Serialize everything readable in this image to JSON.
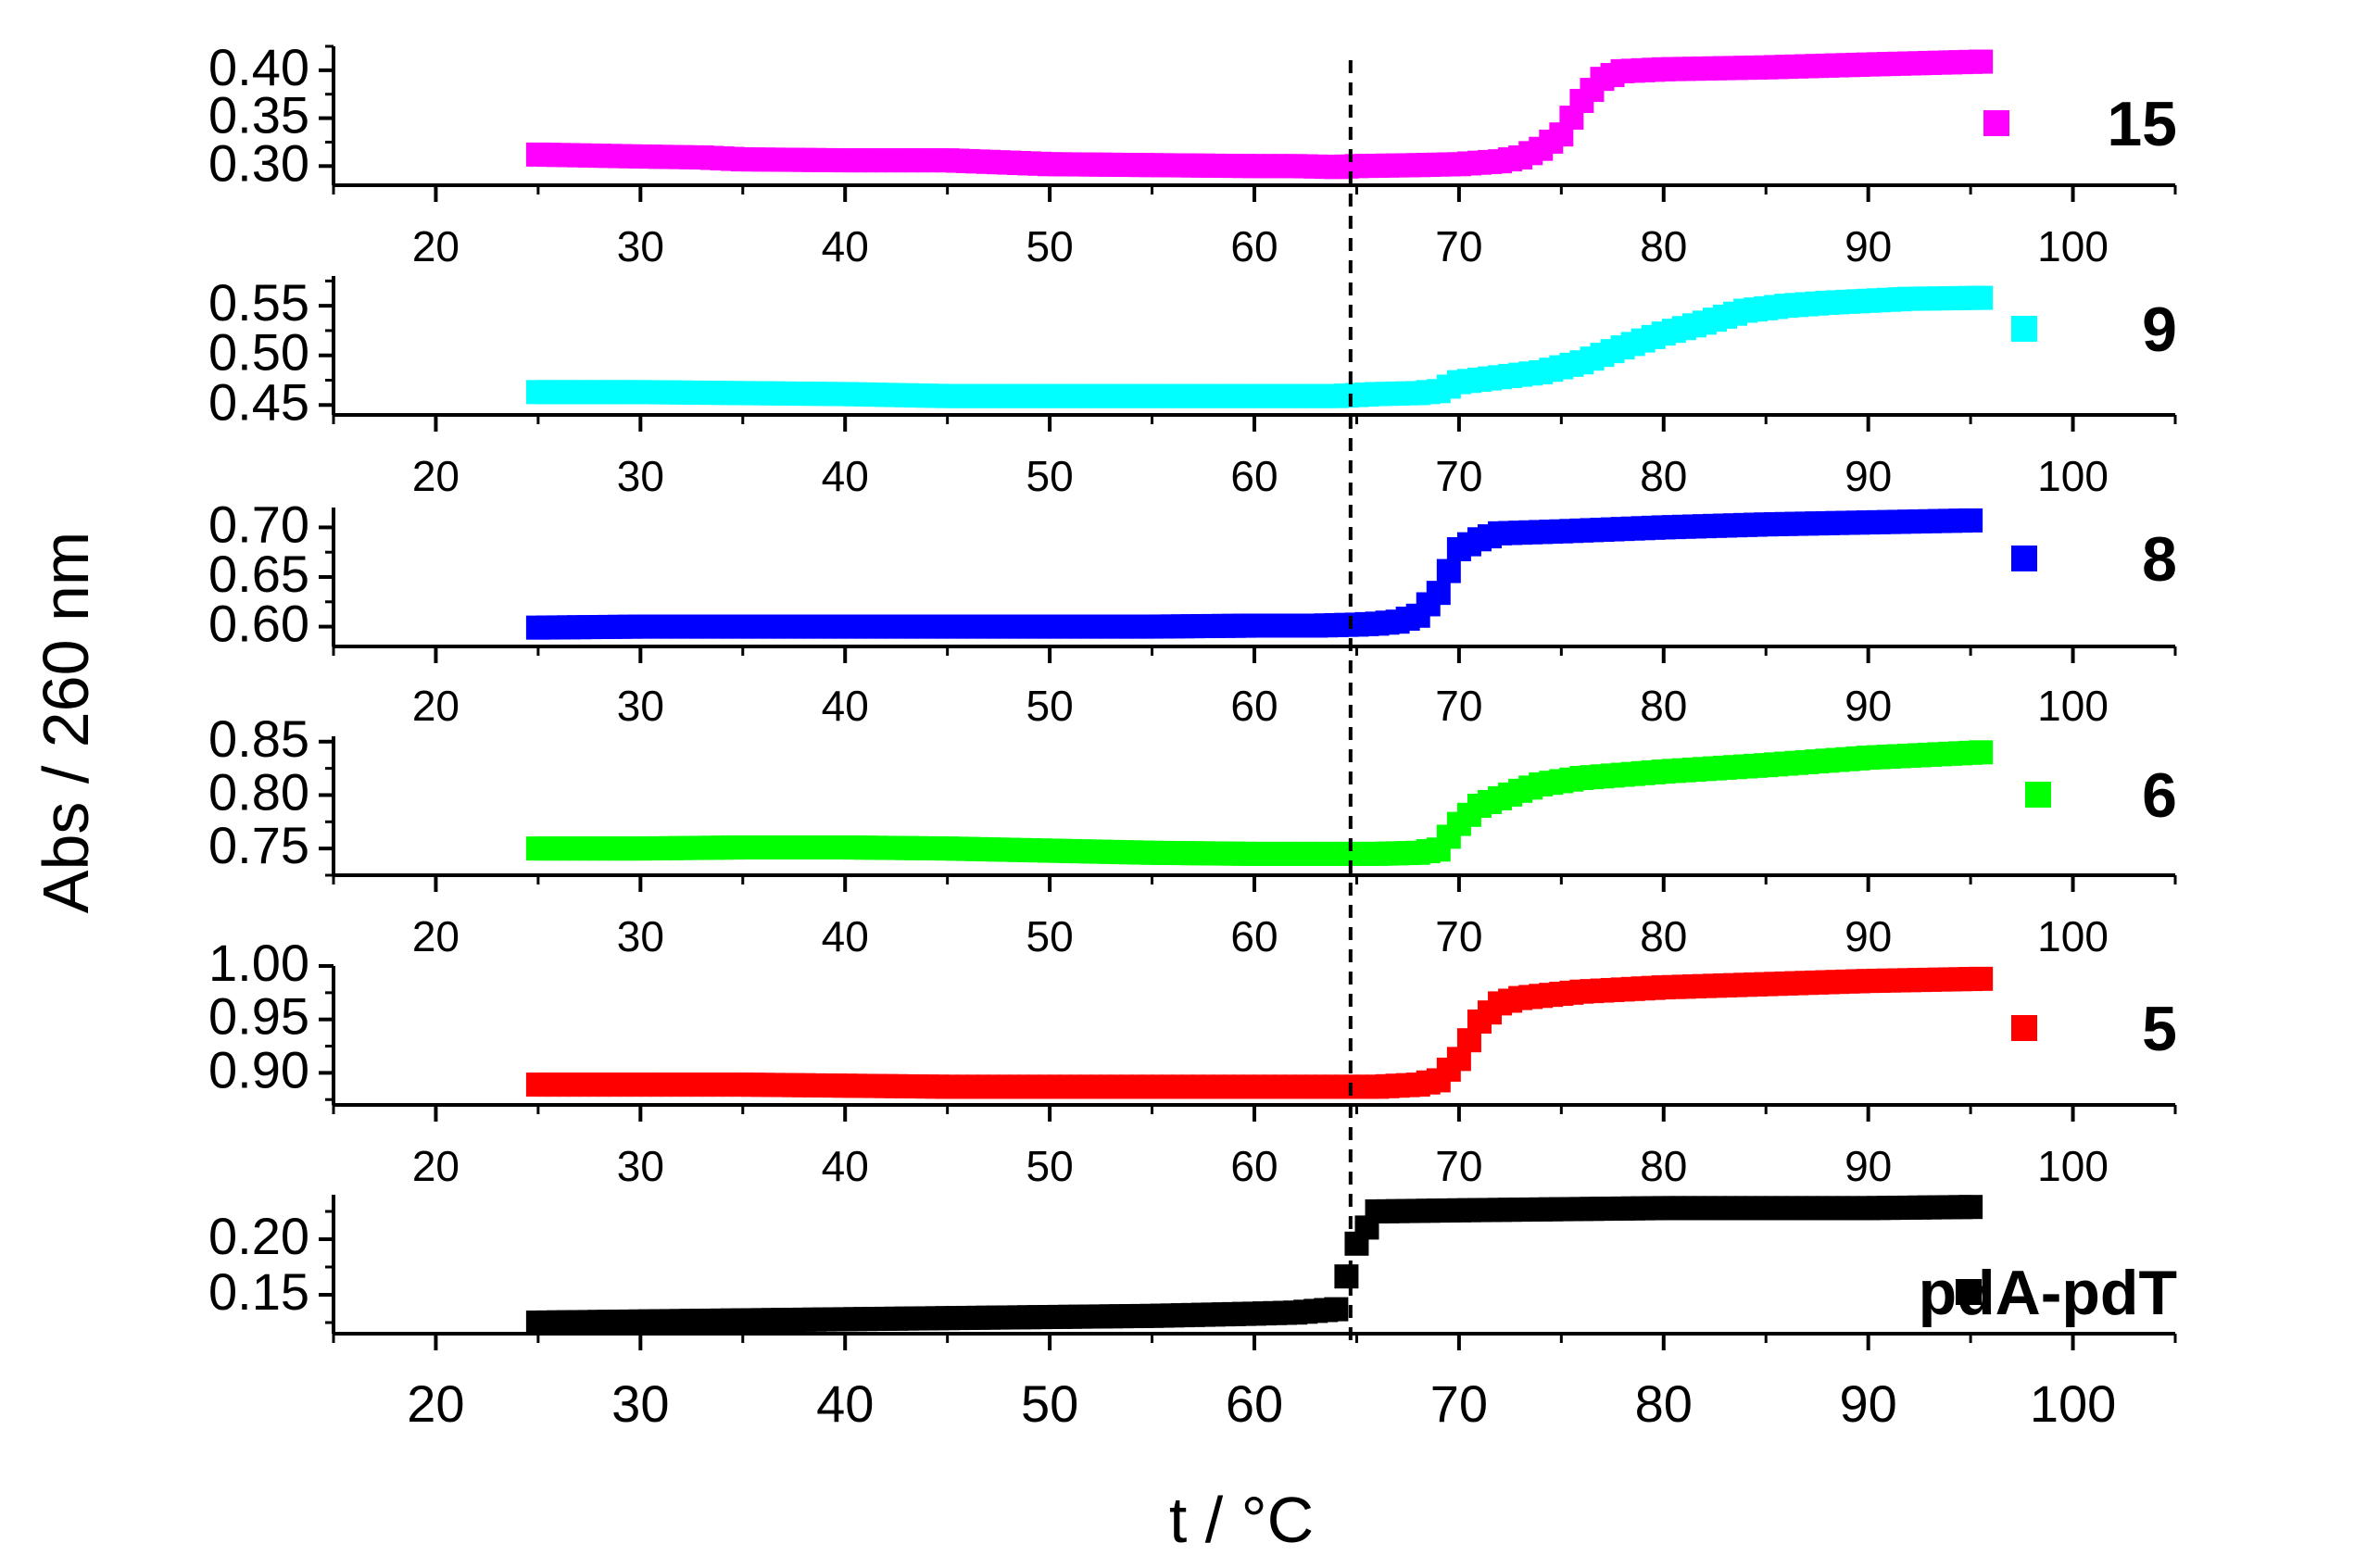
{
  "chart_data": {
    "type": "scatter",
    "layout": "stacked panels",
    "xlabel": "t / °C",
    "ylabel": "Abs / 260 nm",
    "xlim": [
      15,
      105
    ],
    "xticks": [
      "20",
      "30",
      "40",
      "50",
      "60",
      "70",
      "80",
      "90",
      "100"
    ],
    "reference_line": {
      "x": 64.7,
      "style": "dashed",
      "color": "#000000"
    },
    "legend_placement": "right of each panel",
    "panels": [
      {
        "series_name": "15",
        "color": "#ff00ff",
        "ylim": [
          0.28,
          0.425
        ],
        "yticks": [
          "0.30",
          "0.35",
          "0.40"
        ],
        "x": [
          25,
          30,
          33,
          35,
          40,
          45,
          50,
          55,
          60,
          62,
          64,
          65,
          68,
          70,
          72,
          73,
          74,
          75,
          76,
          77,
          78,
          80,
          85,
          90,
          95.5
        ],
        "y": [
          0.312,
          0.31,
          0.309,
          0.307,
          0.306,
          0.306,
          0.302,
          0.301,
          0.3,
          0.3,
          0.299,
          0.3,
          0.301,
          0.302,
          0.305,
          0.309,
          0.318,
          0.333,
          0.368,
          0.391,
          0.399,
          0.401,
          0.403,
          0.406,
          0.409
        ]
      },
      {
        "series_name": "9",
        "color": "#00ffff",
        "ylim": [
          0.44,
          0.58
        ],
        "yticks": [
          "0.45",
          "0.50",
          "0.55"
        ],
        "x": [
          25,
          30,
          35,
          40,
          45,
          50,
          55,
          60,
          64,
          66,
          68,
          69,
          70,
          72,
          74,
          76,
          78,
          80,
          82,
          84,
          86,
          88,
          90,
          92,
          95.5
        ],
        "y": [
          0.463,
          0.463,
          0.462,
          0.461,
          0.459,
          0.459,
          0.459,
          0.459,
          0.459,
          0.461,
          0.462,
          0.464,
          0.473,
          0.478,
          0.483,
          0.493,
          0.508,
          0.522,
          0.533,
          0.545,
          0.55,
          0.553,
          0.555,
          0.557,
          0.558
        ]
      },
      {
        "series_name": "8",
        "color": "#0000ff",
        "ylim": [
          0.58,
          0.72
        ],
        "yticks": [
          "0.60",
          "0.65",
          "0.70"
        ],
        "x": [
          25,
          30,
          35,
          40,
          45,
          50,
          55,
          60,
          63,
          65,
          66,
          67,
          68,
          69,
          70,
          71,
          72,
          75,
          80,
          85,
          90,
          95
        ],
        "y": [
          0.599,
          0.6,
          0.6,
          0.6,
          0.6,
          0.6,
          0.6,
          0.601,
          0.601,
          0.602,
          0.603,
          0.605,
          0.611,
          0.634,
          0.678,
          0.688,
          0.694,
          0.696,
          0.7,
          0.703,
          0.705,
          0.707
        ]
      },
      {
        "series_name": "6",
        "color": "#00ff00",
        "ylim": [
          0.725,
          0.855
        ],
        "yticks": [
          "0.75",
          "0.80",
          "0.85"
        ],
        "x": [
          25,
          30,
          35,
          40,
          45,
          50,
          55,
          60,
          64,
          66,
          68,
          69,
          70,
          71,
          72,
          73,
          74,
          75,
          76,
          80,
          85,
          90,
          95.5
        ],
        "y": [
          0.75,
          0.75,
          0.751,
          0.751,
          0.75,
          0.748,
          0.746,
          0.745,
          0.745,
          0.745,
          0.746,
          0.749,
          0.773,
          0.79,
          0.797,
          0.804,
          0.81,
          0.813,
          0.816,
          0.822,
          0.828,
          0.835,
          0.84
        ]
      },
      {
        "series_name": "5",
        "color": "#ff0000",
        "ylim": [
          0.87,
          1.0
        ],
        "yticks": [
          "0.90",
          "0.95",
          "1.00"
        ],
        "x": [
          25,
          30,
          35,
          40,
          45,
          50,
          55,
          60,
          64,
          66,
          68,
          69,
          70,
          71,
          72,
          73,
          74,
          76,
          80,
          85,
          90,
          95.5
        ],
        "y": [
          0.889,
          0.889,
          0.889,
          0.888,
          0.887,
          0.887,
          0.887,
          0.887,
          0.887,
          0.887,
          0.889,
          0.893,
          0.913,
          0.948,
          0.965,
          0.97,
          0.972,
          0.976,
          0.98,
          0.983,
          0.986,
          0.988
        ]
      },
      {
        "series_name": "pdA-pdT",
        "color": "#000000",
        "ylim": [
          0.115,
          0.24
        ],
        "yticks": [
          "0.15",
          "0.20"
        ],
        "x": [
          25,
          30,
          35,
          40,
          45,
          50,
          55,
          60,
          62,
          64,
          65,
          66,
          70,
          75,
          80,
          85,
          90,
          95
        ],
        "y": [
          0.125,
          0.126,
          0.127,
          0.128,
          0.129,
          0.13,
          0.131,
          0.133,
          0.134,
          0.137,
          0.196,
          0.225,
          0.226,
          0.227,
          0.228,
          0.228,
          0.228,
          0.229
        ]
      }
    ]
  }
}
